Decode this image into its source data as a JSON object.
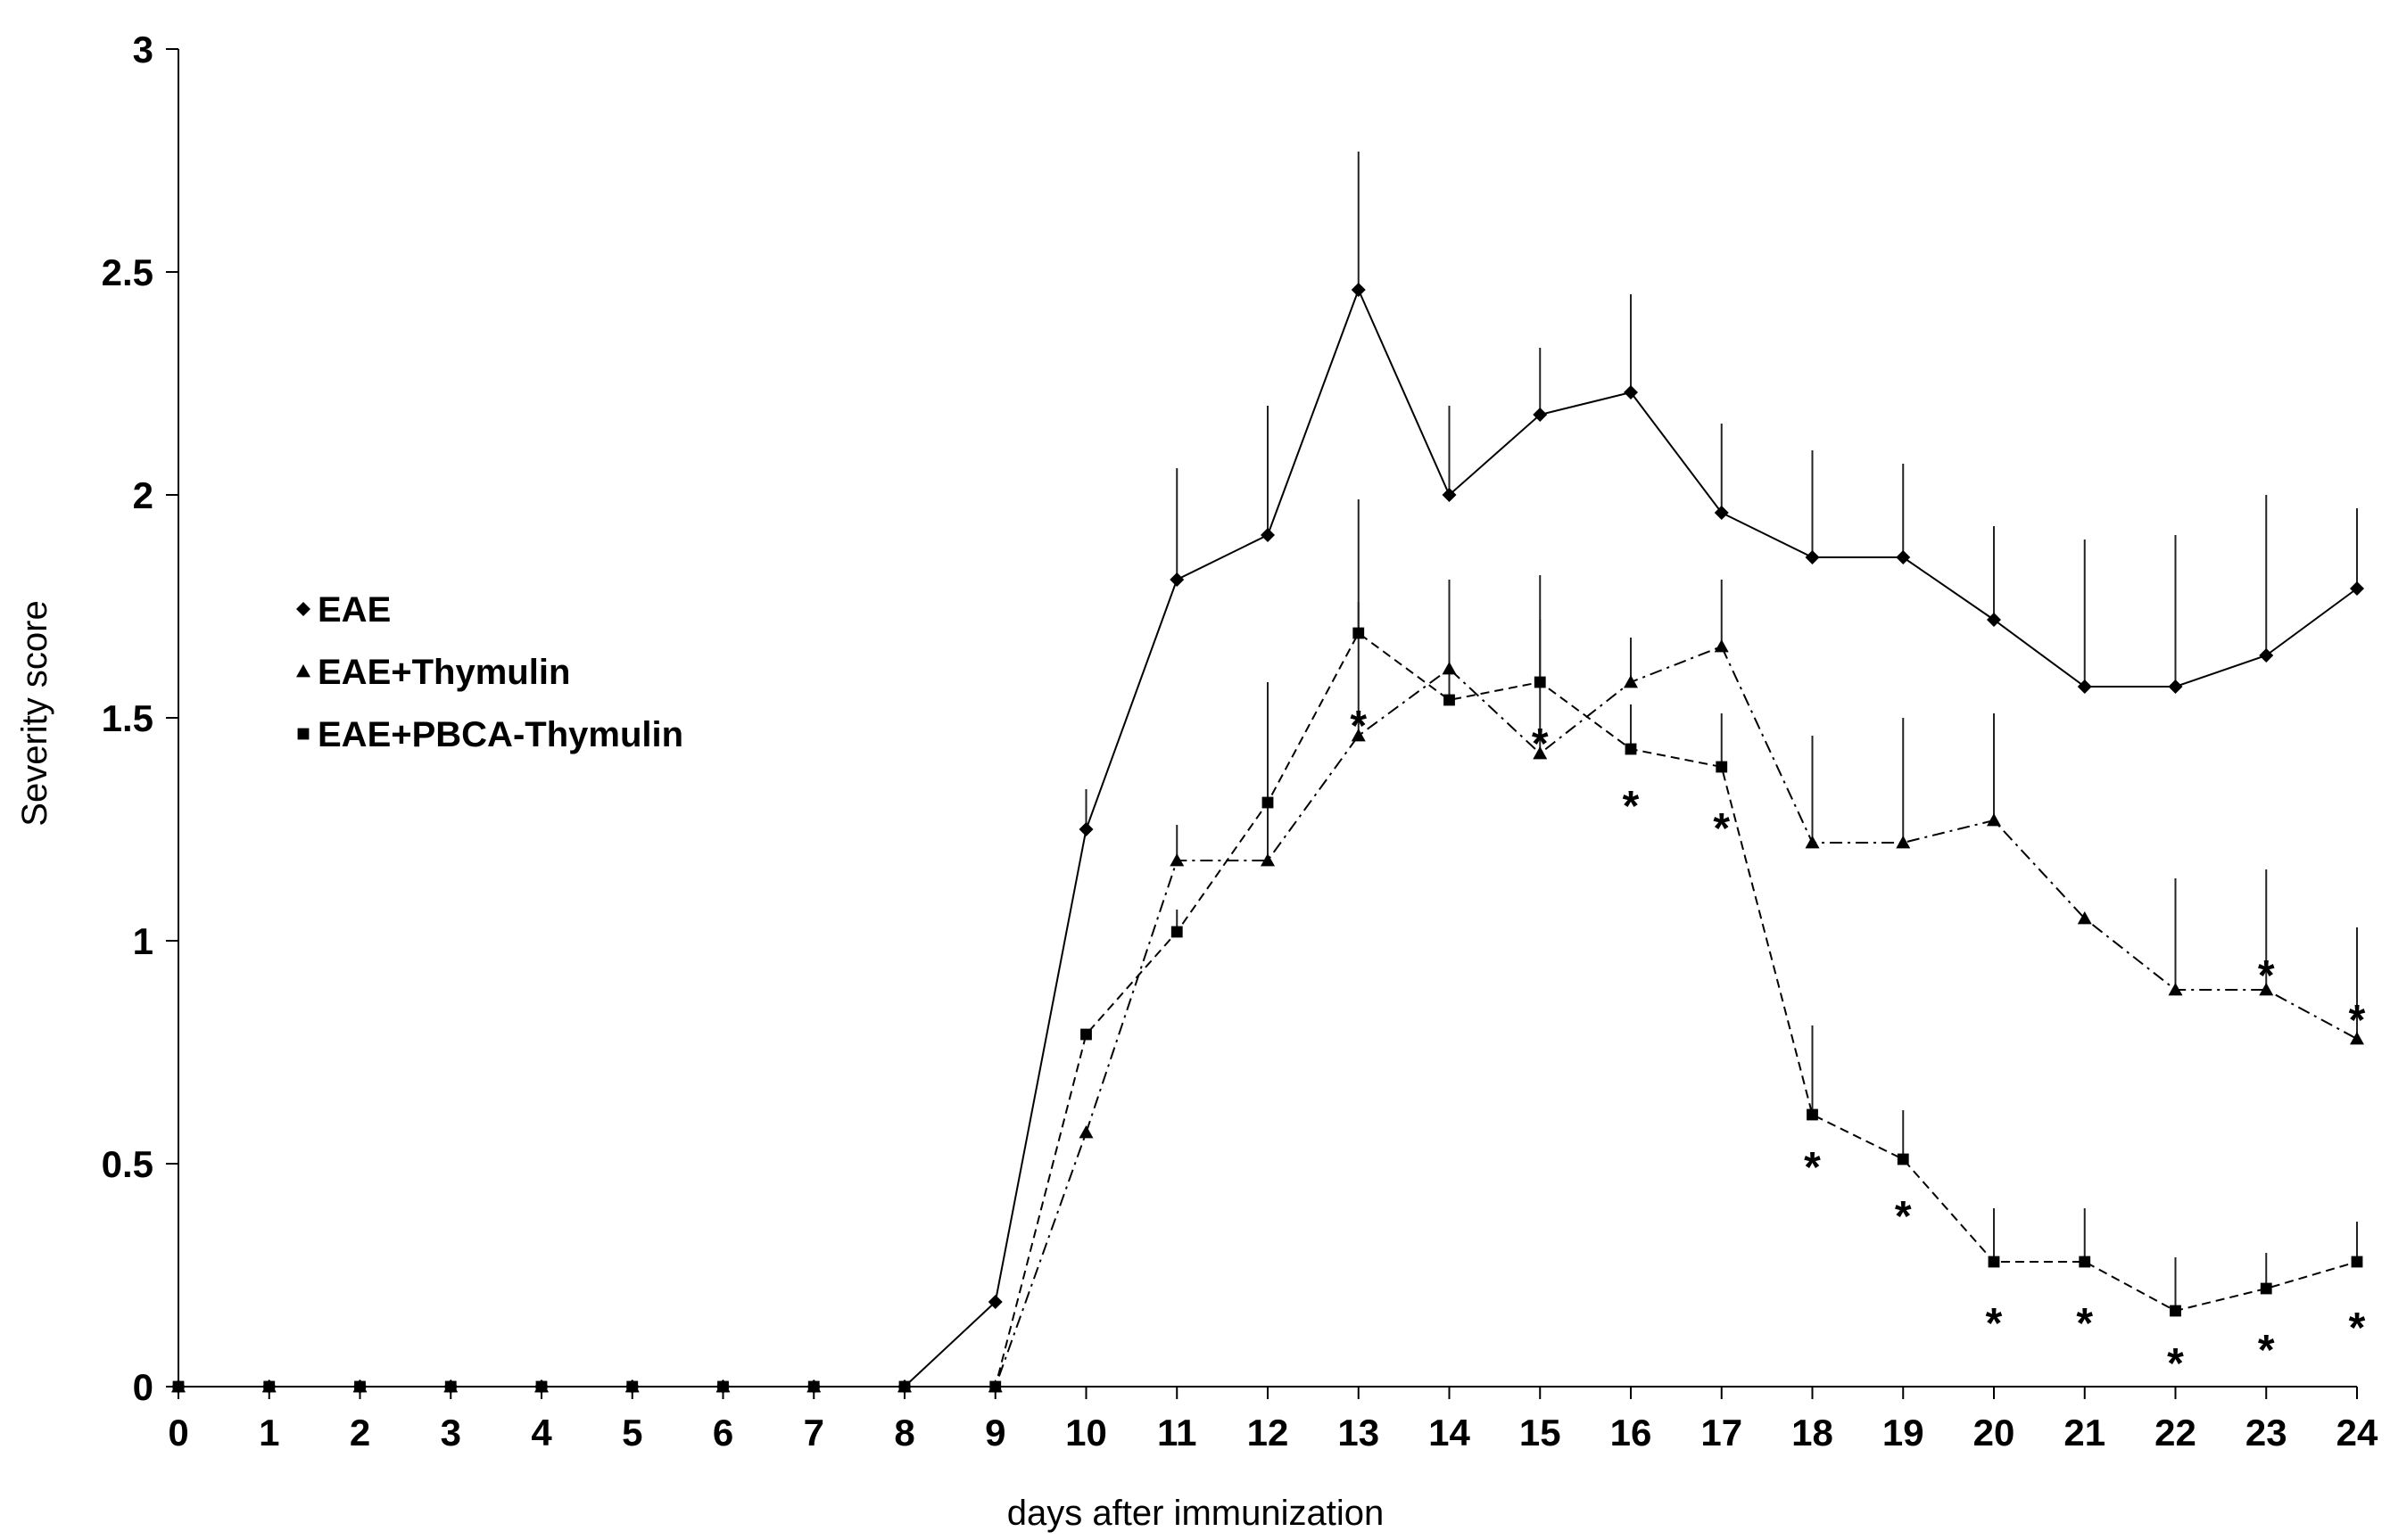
{
  "chart_data": {
    "type": "line",
    "xlabel": "days after immunization",
    "ylabel": "Severity score",
    "xlim": [
      0,
      24
    ],
    "ylim": [
      0,
      3
    ],
    "x_ticks": [
      0,
      1,
      2,
      3,
      4,
      5,
      6,
      7,
      8,
      9,
      10,
      11,
      12,
      13,
      14,
      15,
      16,
      17,
      18,
      19,
      20,
      21,
      22,
      23,
      24
    ],
    "y_ticks": [
      {
        "value": 0,
        "label": "0"
      },
      {
        "value": 0.5,
        "label": "0.5"
      },
      {
        "value": 1,
        "label": "1"
      },
      {
        "value": 1.5,
        "label": "1.5"
      },
      {
        "value": 2,
        "label": "2"
      },
      {
        "value": 2.5,
        "label": "2.5"
      },
      {
        "value": 3,
        "label": "3"
      }
    ],
    "grid": false,
    "legend": {
      "position": "left-middle"
    },
    "x": [
      0,
      1,
      2,
      3,
      4,
      5,
      6,
      7,
      8,
      9,
      10,
      11,
      12,
      13,
      14,
      15,
      16,
      17,
      18,
      19,
      20,
      21,
      22,
      23,
      24
    ],
    "series": [
      {
        "name": "EAE",
        "marker": "diamond",
        "line_style": "solid",
        "values": [
          0,
          0,
          0,
          0,
          0,
          0,
          0,
          0,
          0,
          0.19,
          1.25,
          1.81,
          1.91,
          2.46,
          2.0,
          2.18,
          2.23,
          1.96,
          1.86,
          1.86,
          1.72,
          1.57,
          1.57,
          1.64,
          1.79
        ],
        "error": [
          0,
          0,
          0,
          0,
          0,
          0,
          0,
          0,
          0,
          0,
          0.09,
          0.25,
          0.29,
          0.31,
          0.2,
          0.15,
          0.22,
          0.2,
          0.24,
          0.21,
          0.21,
          0.33,
          0.34,
          0.36,
          0.18
        ]
      },
      {
        "name": "EAE+Thymulin",
        "marker": "triangle",
        "line_style": "dash-dot",
        "values": [
          0,
          0,
          0,
          0,
          0,
          0,
          0,
          0,
          0,
          0,
          0.57,
          1.18,
          1.18,
          1.46,
          1.61,
          1.42,
          1.58,
          1.66,
          1.22,
          1.22,
          1.27,
          1.05,
          0.89,
          0.89,
          0.78
        ],
        "error": [
          0,
          0,
          0,
          0,
          0,
          0,
          0,
          0,
          0,
          0,
          0,
          0.08,
          0.3,
          0.3,
          0.2,
          0.3,
          0.1,
          0.15,
          0.24,
          0.28,
          0.24,
          0,
          0.25,
          0.27,
          0.25
        ]
      },
      {
        "name": "EAE+PBCA-Thymulin",
        "marker": "square",
        "line_style": "dashed",
        "values": [
          0,
          0,
          0,
          0,
          0,
          0,
          0,
          0,
          0,
          0,
          0.79,
          1.02,
          1.31,
          1.69,
          1.54,
          1.58,
          1.43,
          1.39,
          0.61,
          0.51,
          0.28,
          0.28,
          0.17,
          0.22,
          0.28
        ],
        "error": [
          0,
          0,
          0,
          0,
          0,
          0,
          0,
          0,
          0,
          0,
          0,
          0.05,
          0.27,
          0.3,
          0.2,
          0.24,
          0.1,
          0.12,
          0.2,
          0.11,
          0.12,
          0.12,
          0.12,
          0.08,
          0.09
        ]
      }
    ],
    "annotations": [
      {
        "text": "*",
        "x": 13,
        "y": 1.51
      },
      {
        "text": "*",
        "x": 15,
        "y": 1.47
      },
      {
        "text": "*",
        "x": 16,
        "y": 1.33
      },
      {
        "text": "*",
        "x": 17,
        "y": 1.28
      },
      {
        "text": "*",
        "x": 18,
        "y": 0.52
      },
      {
        "text": "*",
        "x": 19,
        "y": 0.41
      },
      {
        "text": "*",
        "x": 20,
        "y": 0.17
      },
      {
        "text": "*",
        "x": 21,
        "y": 0.17
      },
      {
        "text": "*",
        "x": 22,
        "y": 0.08
      },
      {
        "text": "*",
        "x": 23,
        "y": 0.11
      },
      {
        "text": "*",
        "x": 24,
        "y": 0.16
      },
      {
        "text": "*",
        "x": 23,
        "y": 0.95
      },
      {
        "text": "*",
        "x": 24,
        "y": 0.85
      }
    ]
  }
}
